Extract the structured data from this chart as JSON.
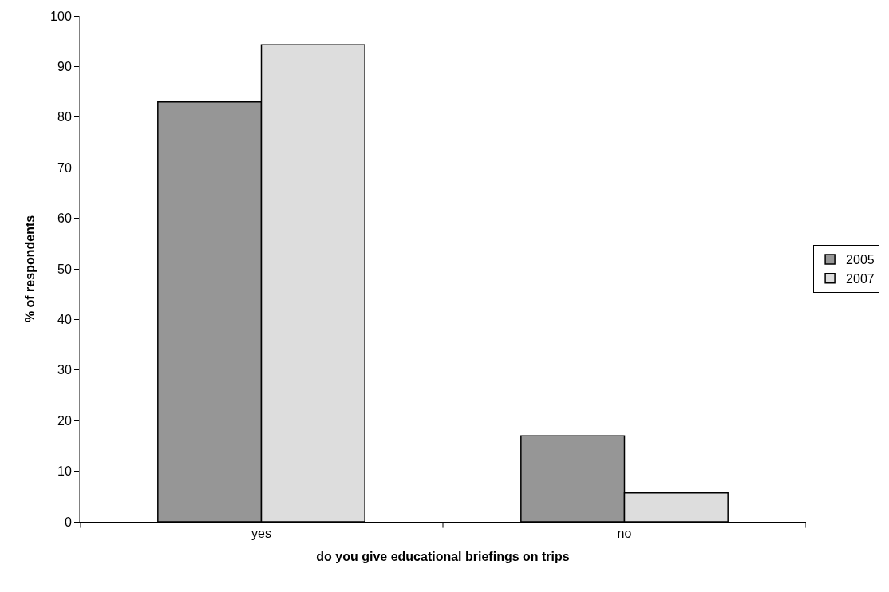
{
  "chart_data": {
    "type": "bar",
    "xlabel": "do you give educational briefings on trips",
    "ylabel": "% of respondents",
    "categories": [
      "yes",
      "no"
    ],
    "series": [
      {
        "name": "2005",
        "color": "#969696",
        "values": [
          83,
          17
        ]
      },
      {
        "name": "2007",
        "color": "#dddddd",
        "values": [
          94.3,
          5.7
        ]
      }
    ],
    "ylim": [
      0,
      100
    ],
    "yticks": [
      0,
      10,
      20,
      30,
      40,
      50,
      60,
      70,
      80,
      90,
      100
    ],
    "legend": "right"
  }
}
